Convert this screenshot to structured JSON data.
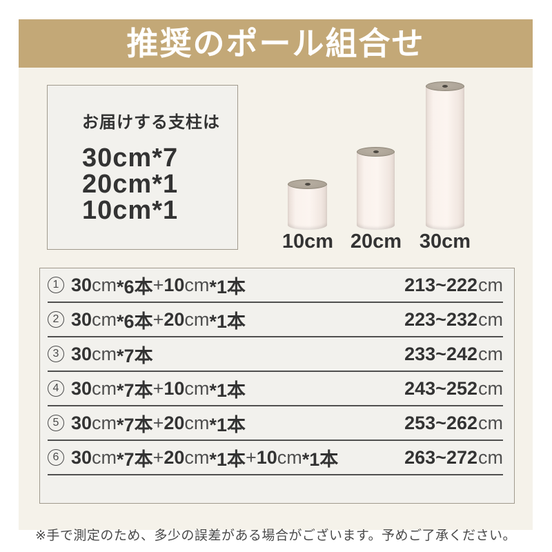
{
  "page": {
    "title": "推奨のポール組合せ",
    "footnote": "※手で測定のため、多少の誤差がある場合がございます。予めご了承ください。"
  },
  "info_box": {
    "heading": "お届けする支柱は",
    "lines": [
      "30cm*7",
      "20cm*1",
      "10cm*1"
    ]
  },
  "poles": [
    {
      "label": "10cm"
    },
    {
      "label": "20cm"
    },
    {
      "label": "30cm"
    }
  ],
  "table": {
    "rows": [
      {
        "num": "1",
        "combo": [
          {
            "t": "30",
            "b": true
          },
          {
            "t": "cm",
            "b": false
          },
          {
            "t": "*6本",
            "b": true
          },
          {
            "t": "+",
            "b": false
          },
          {
            "t": "10",
            "b": true
          },
          {
            "t": "cm",
            "b": false
          },
          {
            "t": "*1本",
            "b": true
          }
        ],
        "range_value": "213~222",
        "range_unit": "cm"
      },
      {
        "num": "2",
        "combo": [
          {
            "t": "30",
            "b": true
          },
          {
            "t": "cm",
            "b": false
          },
          {
            "t": "*6本",
            "b": true
          },
          {
            "t": "+",
            "b": false
          },
          {
            "t": "20",
            "b": true
          },
          {
            "t": "cm",
            "b": false
          },
          {
            "t": "*1本",
            "b": true
          }
        ],
        "range_value": "223~232",
        "range_unit": "cm"
      },
      {
        "num": "3",
        "combo": [
          {
            "t": "30",
            "b": true
          },
          {
            "t": "cm",
            "b": false
          },
          {
            "t": "*7本",
            "b": true
          }
        ],
        "range_value": "233~242",
        "range_unit": "cm"
      },
      {
        "num": "4",
        "combo": [
          {
            "t": "30",
            "b": true
          },
          {
            "t": "cm",
            "b": false
          },
          {
            "t": "*7本",
            "b": true
          },
          {
            "t": "+",
            "b": false
          },
          {
            "t": "10",
            "b": true
          },
          {
            "t": "cm",
            "b": false
          },
          {
            "t": "*1本",
            "b": true
          }
        ],
        "range_value": "243~252",
        "range_unit": "cm"
      },
      {
        "num": "5",
        "combo": [
          {
            "t": "30",
            "b": true
          },
          {
            "t": "cm",
            "b": false
          },
          {
            "t": "*7本",
            "b": true
          },
          {
            "t": "+",
            "b": false
          },
          {
            "t": "20",
            "b": true
          },
          {
            "t": "cm",
            "b": false
          },
          {
            "t": "*1本",
            "b": true
          }
        ],
        "range_value": "253~262",
        "range_unit": "cm"
      },
      {
        "num": "6",
        "combo": [
          {
            "t": "30",
            "b": true
          },
          {
            "t": "cm",
            "b": false
          },
          {
            "t": "*7本",
            "b": true
          },
          {
            "t": "+",
            "b": false
          },
          {
            "t": "20",
            "b": true
          },
          {
            "t": "cm",
            "b": false
          },
          {
            "t": "*1本",
            "b": true
          },
          {
            "t": "+",
            "b": false
          },
          {
            "t": "10",
            "b": true
          },
          {
            "t": "cm",
            "b": false
          },
          {
            "t": "*1本",
            "b": true
          }
        ],
        "range_value": "263~272",
        "range_unit": "cm"
      }
    ]
  },
  "colors": {
    "banner_bg": "#c3a877",
    "banner_text": "#ffffff",
    "page_bg": "#ffffff",
    "content_bg": "#f5f2ea",
    "panel_bg": "#f2f1ed",
    "panel_border": "#a09a8d",
    "text_dark": "#333333",
    "text_regular": "#4f4f4f",
    "row_line": "#4f4f4f",
    "pole_cap": "#afa699",
    "pole_body": "#f9f1ec"
  }
}
